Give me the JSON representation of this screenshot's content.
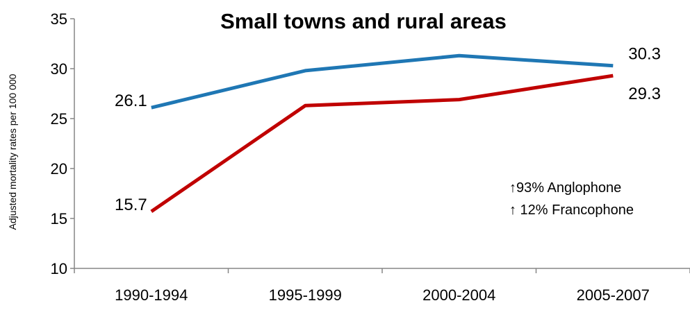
{
  "chart_data": {
    "type": "line",
    "title": "Small towns and rural areas",
    "xlabel": "",
    "ylabel": "Adjusted mortality rates per 100 000",
    "categories": [
      "1990-1994",
      "1995-1999",
      "2000-2004",
      "2005-2007"
    ],
    "ylim": [
      10,
      35
    ],
    "yticks": [
      10,
      15,
      20,
      25,
      30,
      35
    ],
    "grid": false,
    "series": [
      {
        "color": "#1f77b4",
        "values": [
          26.1,
          29.8,
          31.3,
          30.3
        ]
      },
      {
        "color": "#c00000",
        "values": [
          15.7,
          26.3,
          26.9,
          29.3
        ]
      }
    ],
    "data_labels": [
      {
        "series": 0,
        "point": 0,
        "text": "26.1",
        "side": "left"
      },
      {
        "series": 1,
        "point": 0,
        "text": "15.7",
        "side": "left"
      },
      {
        "series": 0,
        "point": 3,
        "text": "30.3",
        "side": "right-above"
      },
      {
        "series": 1,
        "point": 3,
        "text": "29.3",
        "side": "right-below"
      }
    ],
    "annotations": [
      "↑93% Anglophone",
      "↑ 12% Francophone"
    ]
  }
}
